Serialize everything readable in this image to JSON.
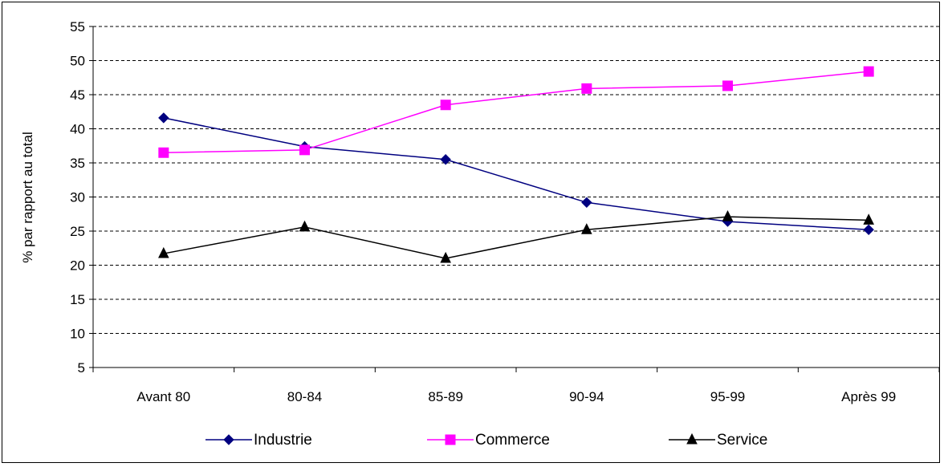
{
  "chart_data": {
    "type": "line",
    "title": "",
    "xlabel": "",
    "ylabel": "% par rapport au total",
    "categories": [
      "Avant 80",
      "80-84",
      "85-89",
      "90-94",
      "95-99",
      "Après 99"
    ],
    "ylim": [
      5,
      55
    ],
    "yticks": [
      5,
      10,
      15,
      20,
      25,
      30,
      35,
      40,
      45,
      50,
      55
    ],
    "grid": "horizontal-dashed",
    "legend_position": "bottom",
    "series": [
      {
        "name": "Industrie",
        "color": "#000080",
        "marker": "diamond",
        "values": [
          41.6,
          37.4,
          35.5,
          29.2,
          26.4,
          25.2
        ]
      },
      {
        "name": "Commerce",
        "color": "#ff00ff",
        "marker": "square",
        "values": [
          36.5,
          36.9,
          43.5,
          45.9,
          46.3,
          48.4
        ]
      },
      {
        "name": "Service",
        "color": "#000000",
        "marker": "triangle",
        "values": [
          21.7,
          25.6,
          21.0,
          25.2,
          27.1,
          26.6
        ]
      }
    ]
  }
}
